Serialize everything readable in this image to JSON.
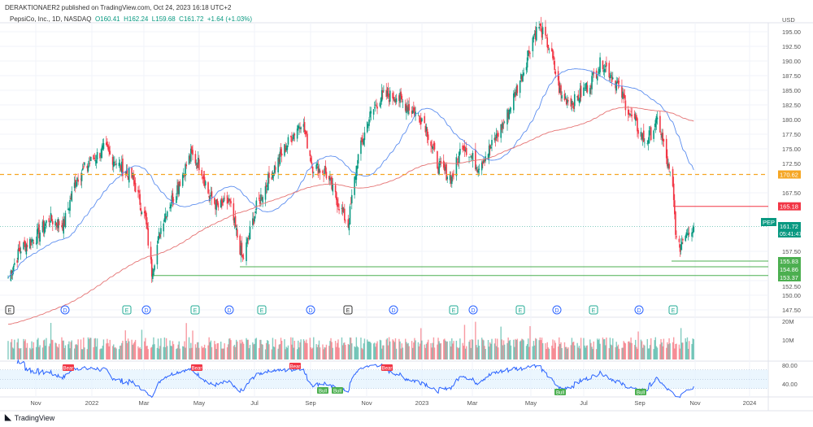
{
  "header": {
    "published": "DERAKTIONAER2 published on TradingView.com, Oct 24, 2023 16:18 UTC+2",
    "symbol_line": "PepsiCo, Inc., 1D, NASDAQ",
    "open": "O160.41",
    "high": "H162.24",
    "low": "L159.68",
    "close": "C161.72",
    "change": "+1.64 (+1.03%)"
  },
  "currency": "USD",
  "colors": {
    "up": "#089981",
    "down": "#f23645",
    "ma50": "#5b8def",
    "ma200": "#e57373",
    "orange": "#f5a623",
    "rsi": "#2962ff"
  },
  "price_axis": [
    "195.00",
    "192.50",
    "190.00",
    "187.50",
    "185.00",
    "182.50",
    "180.00",
    "177.50",
    "175.00",
    "172.50",
    "167.50",
    "157.50",
    "152.50",
    "150.00",
    "147.50"
  ],
  "price_labels": {
    "orange": "170.62",
    "red": "165.18",
    "ticker": "PEP",
    "last": "161.72",
    "countdown": "05:41:47",
    "g1": "155.83",
    "g2": "154.86",
    "g3": "153.37"
  },
  "volume_axis": [
    "20M",
    "10M"
  ],
  "rsi_axis": [
    "80.00",
    "40.00"
  ],
  "time_axis": [
    "Nov",
    "2022",
    "Mar",
    "May",
    "Jul",
    "Sep",
    "Nov",
    "2023",
    "Mar",
    "May",
    "Jul",
    "Sep",
    "Nov",
    "2024"
  ],
  "events": [
    "E",
    "D",
    "E",
    "D",
    "E",
    "D",
    "E",
    "D",
    "E",
    "D",
    "E",
    "D",
    "E",
    "D",
    "E",
    "D",
    "E"
  ],
  "signals": [
    "Bear",
    "Bear",
    "Bear",
    "Bear",
    "Bull",
    "Bull",
    "Bull",
    "Bull"
  ],
  "footer": {
    "brand": "TradingView"
  },
  "chart_data": {
    "type": "candlestick",
    "price_path_days": [
      0,
      14,
      31,
      45,
      61,
      75,
      92,
      106,
      123,
      137,
      151,
      158,
      170,
      182,
      201,
      212,
      221,
      231,
      243,
      258,
      273,
      287,
      304,
      323,
      335,
      349,
      365,
      374,
      384,
      396,
      410,
      427,
      441,
      457,
      457,
      473,
      488,
      500,
      516,
      530,
      547,
      566,
      577,
      584,
      596,
      608,
      622,
      639,
      653,
      670,
      684,
      701,
      715,
      731,
      736,
      745,
      754
    ],
    "price_path": [
      153,
      158,
      160,
      163,
      162,
      170,
      173,
      175,
      172,
      170,
      163,
      154,
      163,
      167,
      174,
      172,
      167,
      165,
      166,
      156,
      165,
      170,
      175,
      180,
      172,
      171,
      165,
      162,
      173,
      180,
      184,
      184,
      182,
      180,
      180,
      172,
      170,
      176,
      172,
      175,
      180,
      188,
      194,
      196,
      192,
      184,
      183,
      186,
      190,
      186,
      181,
      176,
      180,
      168,
      157,
      161,
      161.72
    ],
    "start": "2021-10-01",
    "end": "2023-10-24"
  }
}
